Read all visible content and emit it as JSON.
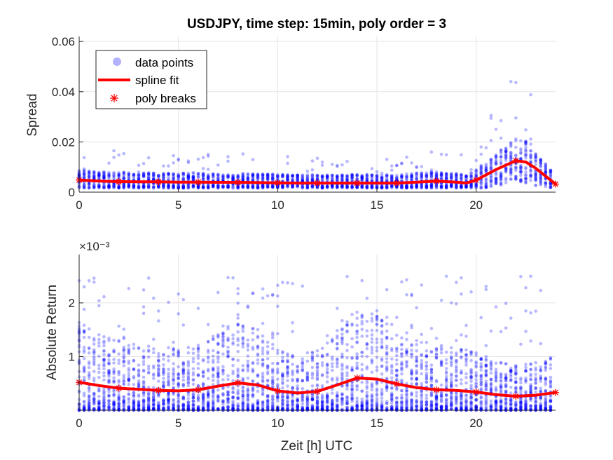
{
  "figure": {
    "title": "USDJPY, time step: 15min, poly order = 3",
    "colors": {
      "points": "#0000ff",
      "fit": "#ff0000",
      "grid": "#e5e5e5",
      "axis": "#262626"
    }
  },
  "legend": {
    "placement": "top-left",
    "entries": [
      "data points",
      "spline fit",
      "poly breaks"
    ]
  },
  "chart_data": [
    {
      "type": "scatter",
      "title": "USDJPY, time step: 15min, poly order = 3",
      "xlabel": "",
      "ylabel": "Spread",
      "xlim": [
        0,
        24
      ],
      "ylim": [
        0,
        0.062
      ],
      "xticks": [
        "0",
        "5",
        "10",
        "15",
        "20"
      ],
      "yticks": [
        "0",
        "0.02",
        "0.04",
        "0.06"
      ],
      "ytick_values": [
        0,
        0.02,
        0.04,
        0.06
      ],
      "grid": true,
      "series": [
        {
          "name": "spline fit",
          "x": [
            0,
            1,
            2,
            3,
            4,
            5,
            6,
            7,
            8,
            9,
            10,
            11,
            12,
            13,
            14,
            15,
            16,
            17,
            18,
            19,
            19.5,
            20,
            21,
            22,
            22.5,
            23,
            24
          ],
          "y": [
            0.0048,
            0.0044,
            0.0042,
            0.0041,
            0.0041,
            0.004,
            0.004,
            0.0039,
            0.0039,
            0.0038,
            0.0037,
            0.0036,
            0.0036,
            0.0036,
            0.0036,
            0.0036,
            0.0036,
            0.004,
            0.0044,
            0.004,
            0.0036,
            0.0048,
            0.009,
            0.0125,
            0.012,
            0.0095,
            0.0032
          ]
        },
        {
          "name": "poly breaks",
          "x": [
            0,
            2,
            4,
            6,
            8,
            10,
            12,
            14,
            16,
            18,
            20,
            22,
            24
          ],
          "y": [
            0.0048,
            0.0042,
            0.0041,
            0.004,
            0.0039,
            0.0037,
            0.0036,
            0.0036,
            0.0036,
            0.0044,
            0.0048,
            0.0125,
            0.0032
          ]
        }
      ]
    },
    {
      "type": "scatter",
      "title": "",
      "xlabel": "Zeit [h] UTC",
      "ylabel": "Absolute Return",
      "yscale_label": "×10⁻³",
      "xlim": [
        0,
        24
      ],
      "ylim": [
        0,
        0.0029
      ],
      "xticks": [
        "0",
        "5",
        "10",
        "15",
        "20"
      ],
      "yticks": [
        "1",
        "2"
      ],
      "ytick_values": [
        0.001,
        0.002
      ],
      "grid": true,
      "series": [
        {
          "name": "spline fit",
          "x": [
            0,
            1,
            2,
            3,
            4,
            5,
            6,
            7,
            8,
            9,
            10,
            11,
            12,
            13,
            14,
            15,
            16,
            17,
            18,
            19,
            20,
            21,
            22,
            23,
            24
          ],
          "y": [
            0.00052,
            0.00046,
            0.00041,
            0.00039,
            0.00037,
            0.00036,
            0.00038,
            0.00045,
            0.00051,
            0.00047,
            0.00036,
            0.00032,
            0.00035,
            0.00047,
            0.0006,
            0.00058,
            0.00049,
            0.00042,
            0.00038,
            0.00037,
            0.00034,
            0.00029,
            0.00026,
            0.00028,
            0.00033
          ]
        },
        {
          "name": "poly breaks",
          "x": [
            0,
            2,
            4,
            6,
            8,
            10,
            12,
            14,
            16,
            18,
            20,
            22,
            24
          ],
          "y": [
            0.00052,
            0.00041,
            0.00037,
            0.00038,
            0.00051,
            0.00036,
            0.00035,
            0.0006,
            0.00049,
            0.00038,
            0.00034,
            0.00026,
            0.00033
          ]
        }
      ]
    }
  ]
}
